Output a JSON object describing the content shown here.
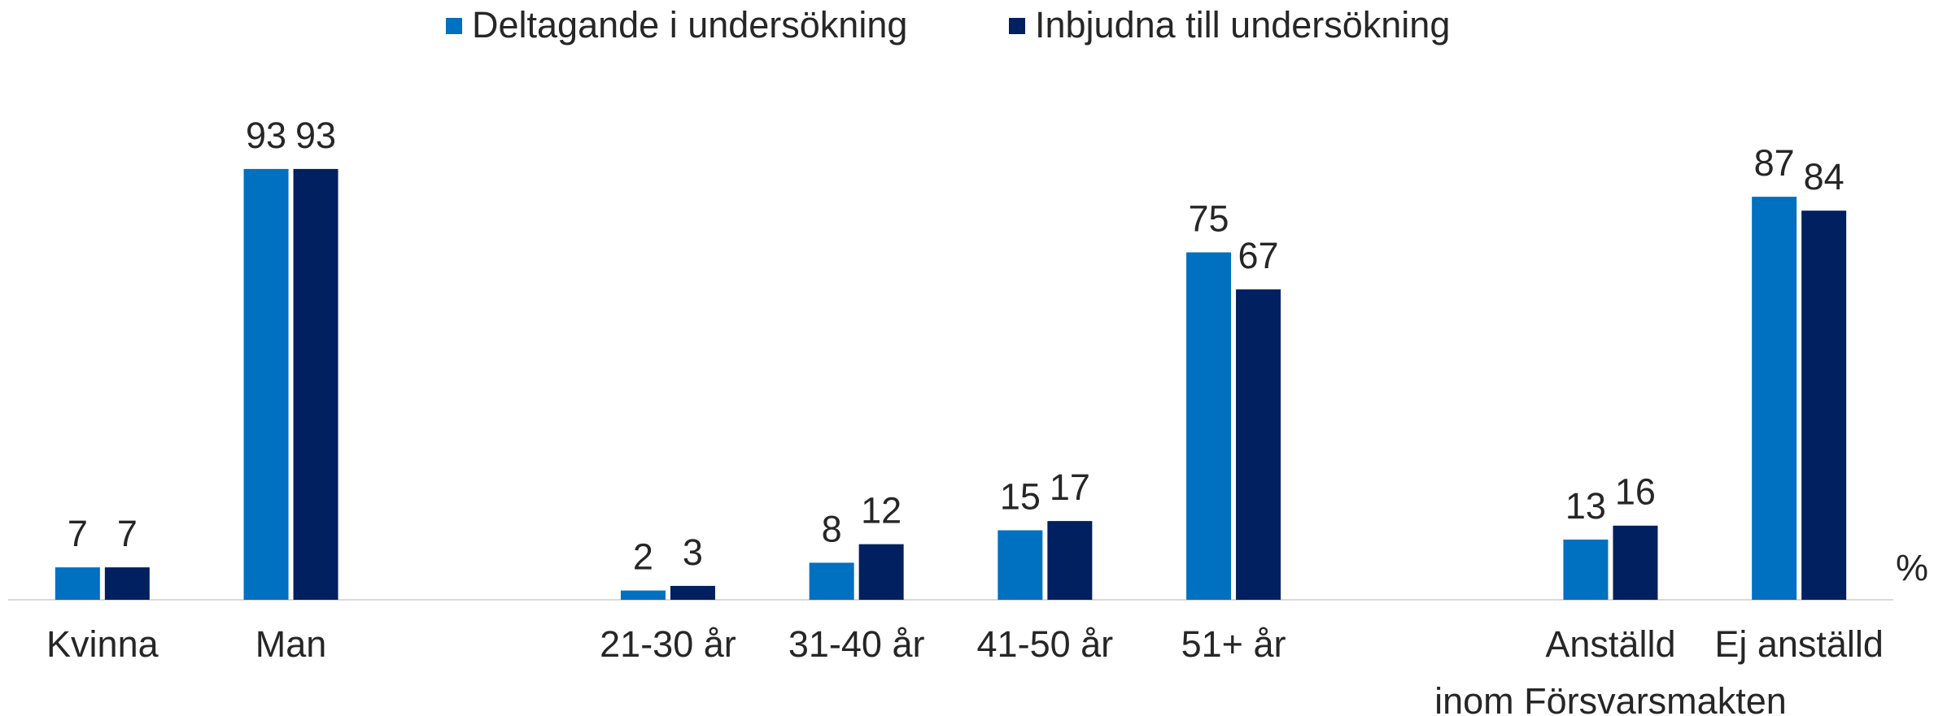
{
  "chart_data": {
    "type": "bar",
    "categories": [
      "Kvinna",
      "Man",
      null,
      "21-30 år",
      "31-40 år",
      "41-50 år",
      "51+ år",
      null,
      "Anställd inom Försvarsmakten",
      "Ej anställd"
    ],
    "series": [
      {
        "name": "Deltagande i undersökning",
        "color": "#0070c0",
        "values": [
          7,
          93,
          null,
          2,
          8,
          15,
          75,
          null,
          13,
          87
        ]
      },
      {
        "name": "Inbjudna till undersökning",
        "color": "#002060",
        "values": [
          7,
          93,
          null,
          3,
          12,
          17,
          67,
          null,
          16,
          84
        ]
      }
    ],
    "ylim": [
      0,
      100
    ],
    "y_label": "%",
    "legend": "top"
  }
}
